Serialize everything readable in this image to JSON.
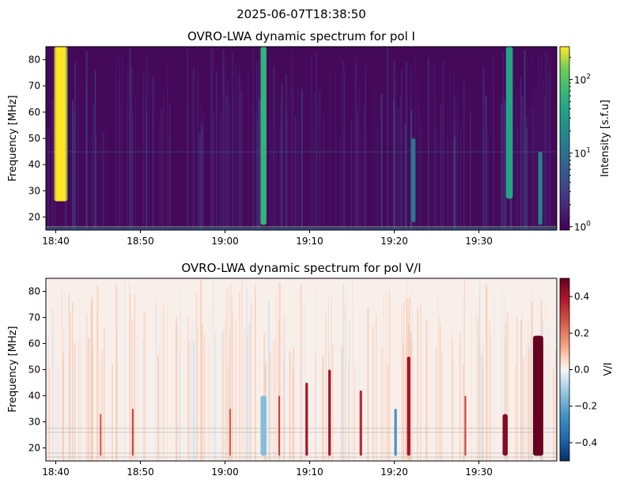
{
  "suptitle": "2025-06-07T18:38:50",
  "chart_data": [
    {
      "type": "heatmap",
      "title": "OVRO-LWA dynamic spectrum for pol I",
      "xlabel": "",
      "ylabel": "Frequency [MHz]",
      "x_ticks": [
        "18:40",
        "18:50",
        "19:00",
        "19:10",
        "19:20",
        "19:30"
      ],
      "x_tick_minutes": [
        40,
        50,
        60,
        70,
        80,
        90
      ],
      "xlim_minutes": [
        38.83,
        99.2
      ],
      "y_ticks": [
        20,
        30,
        40,
        50,
        60,
        70,
        80
      ],
      "ylim": [
        15,
        85
      ],
      "colorbar": {
        "label": "Intensity [s.f.u]",
        "scale": "log",
        "range": [
          0.9,
          280
        ],
        "major_ticks": [
          1,
          10,
          100
        ],
        "tick_labels": [
          "10",
          "10",
          "10"
        ],
        "tick_exponents": [
          "0",
          "1",
          "2"
        ],
        "colormap": "viridis"
      },
      "bursts": [
        {
          "t_start": 39.8,
          "t_end": 41.4,
          "f_low": 26,
          "f_high": 85,
          "peak": 280
        },
        {
          "t_start": 64.2,
          "t_end": 64.9,
          "f_low": 17,
          "f_high": 85,
          "peak": 60
        },
        {
          "t_start": 82.0,
          "t_end": 82.5,
          "f_low": 18,
          "f_high": 50,
          "peak": 12
        },
        {
          "t_start": 93.2,
          "t_end": 94.0,
          "f_low": 27,
          "f_high": 85,
          "peak": 40
        },
        {
          "t_start": 97.0,
          "t_end": 97.5,
          "f_low": 17,
          "f_high": 45,
          "peak": 15
        }
      ]
    },
    {
      "type": "heatmap",
      "title": "OVRO-LWA dynamic spectrum for pol V/I",
      "xlabel": "",
      "ylabel": "Frequency [MHz]",
      "x_ticks": [
        "18:40",
        "18:50",
        "19:00",
        "19:10",
        "19:20",
        "19:30"
      ],
      "x_tick_minutes": [
        40,
        50,
        60,
        70,
        80,
        90
      ],
      "xlim_minutes": [
        38.83,
        99.2
      ],
      "y_ticks": [
        20,
        30,
        40,
        50,
        60,
        70,
        80
      ],
      "ylim": [
        15,
        85
      ],
      "colorbar": {
        "label": "V/I",
        "scale": "linear",
        "range": [
          -0.5,
          0.5
        ],
        "ticks": [
          -0.4,
          -0.2,
          0.0,
          0.2,
          0.4
        ],
        "tick_labels": [
          "−0.4",
          "−0.2",
          "0.0",
          "0.2",
          "0.4"
        ],
        "colormap": "RdBu_r"
      },
      "bursts": [
        {
          "t_start": 96.4,
          "t_end": 97.6,
          "f_low": 17,
          "f_high": 63,
          "peak": 0.5
        },
        {
          "t_start": 92.8,
          "t_end": 93.4,
          "f_low": 17,
          "f_high": 33,
          "peak": 0.45
        },
        {
          "t_start": 81.5,
          "t_end": 81.9,
          "f_low": 17,
          "f_high": 55,
          "peak": 0.4
        },
        {
          "t_start": 72.2,
          "t_end": 72.5,
          "f_low": 17,
          "f_high": 50,
          "peak": 0.4
        },
        {
          "t_start": 69.5,
          "t_end": 69.8,
          "f_low": 17,
          "f_high": 45,
          "peak": 0.4
        },
        {
          "t_start": 75.9,
          "t_end": 76.2,
          "f_low": 17,
          "f_high": 42,
          "peak": 0.35
        },
        {
          "t_start": 66.3,
          "t_end": 66.5,
          "f_low": 17,
          "f_high": 40,
          "peak": 0.3
        },
        {
          "t_start": 60.5,
          "t_end": 60.7,
          "f_low": 17,
          "f_high": 35,
          "peak": 0.25
        },
        {
          "t_start": 49.0,
          "t_end": 49.2,
          "f_low": 17,
          "f_high": 35,
          "peak": 0.3
        },
        {
          "t_start": 45.2,
          "t_end": 45.4,
          "f_low": 17,
          "f_high": 33,
          "peak": 0.25
        },
        {
          "t_start": 88.3,
          "t_end": 88.5,
          "f_low": 17,
          "f_high": 40,
          "peak": 0.3
        },
        {
          "t_start": 80.0,
          "t_end": 80.3,
          "f_low": 17,
          "f_high": 35,
          "peak": -0.25
        },
        {
          "t_start": 64.2,
          "t_end": 64.9,
          "f_low": 17,
          "f_high": 40,
          "peak": -0.15
        }
      ]
    }
  ]
}
